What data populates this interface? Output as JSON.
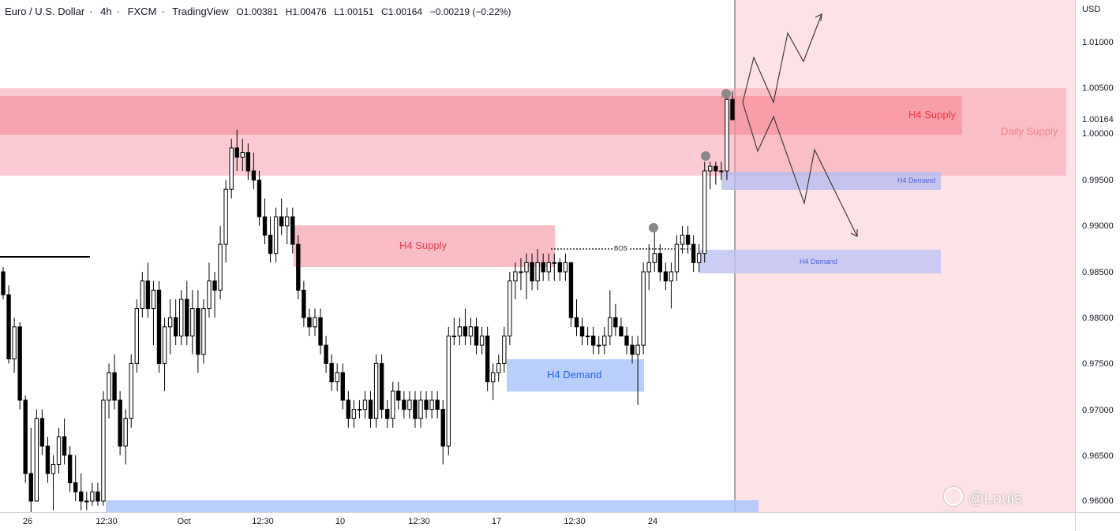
{
  "header": {
    "symbol": "Euro / U.S. Dollar",
    "interval": "4h",
    "exchange": "FXCM",
    "source": "TradingView",
    "open": "O1.00381",
    "high": "H1.00476",
    "low": "L1.00151",
    "close": "C1.00164",
    "change": "−0.00219 (−0.22%)"
  },
  "price_axis": {
    "currency": "USD",
    "labels": [
      "1.01000",
      "1.00500",
      "1.00000",
      "0.99500",
      "0.99000",
      "0.98500",
      "0.98000",
      "0.97500",
      "0.97000",
      "0.96500",
      "0.96000"
    ],
    "current_price": "1.00164"
  },
  "time_axis": {
    "labels": [
      "26",
      "12:30",
      "Oct",
      "12:30",
      "10",
      "12:30",
      "17",
      "12:30",
      "24"
    ]
  },
  "zones": {
    "h4_supply_top": "H4 Supply",
    "daily_supply": "Daily Supply",
    "h4_supply_mid": "H4 Supply",
    "h4_demand_low": "H4 Demand",
    "h4_demand_right_upper": "H4 Demand",
    "h4_demand_right_lower": "H4 Demand",
    "bos": "BOS"
  },
  "watermark": "@Louis Nguyen",
  "colors": {
    "supply": "#f23645",
    "demand": "#2962ff",
    "candle": "#000000",
    "forecast_bg": "#fde2e6"
  },
  "chart_data": {
    "type": "candlestick",
    "symbol": "EURUSD",
    "interval": "4h",
    "price_range": [
      0.959,
      1.0145
    ],
    "ohlc": [
      [
        0.985,
        0.9855,
        0.982,
        0.9825
      ],
      [
        0.9825,
        0.9835,
        0.975,
        0.9755
      ],
      [
        0.9755,
        0.98,
        0.974,
        0.979
      ],
      [
        0.979,
        0.9795,
        0.97,
        0.971
      ],
      [
        0.971,
        0.9715,
        0.962,
        0.963
      ],
      [
        0.963,
        0.968,
        0.958,
        0.96
      ],
      [
        0.96,
        0.97,
        0.96,
        0.969
      ],
      [
        0.969,
        0.97,
        0.965,
        0.966
      ],
      [
        0.966,
        0.967,
        0.962,
        0.963
      ],
      [
        0.963,
        0.965,
        0.959,
        0.964
      ],
      [
        0.964,
        0.968,
        0.963,
        0.967
      ],
      [
        0.967,
        0.969,
        0.964,
        0.965
      ],
      [
        0.965,
        0.966,
        0.961,
        0.962
      ],
      [
        0.962,
        0.965,
        0.96,
        0.961
      ],
      [
        0.961,
        0.963,
        0.959,
        0.96
      ],
      [
        0.96,
        0.961,
        0.959,
        0.96
      ],
      [
        0.96,
        0.962,
        0.9595,
        0.961
      ],
      [
        0.961,
        0.962,
        0.9595,
        0.96
      ],
      [
        0.96,
        0.972,
        0.9595,
        0.971
      ],
      [
        0.971,
        0.975,
        0.969,
        0.974
      ],
      [
        0.974,
        0.976,
        0.97,
        0.971
      ],
      [
        0.971,
        0.972,
        0.965,
        0.966
      ],
      [
        0.966,
        0.97,
        0.964,
        0.969
      ],
      [
        0.969,
        0.976,
        0.968,
        0.975
      ],
      [
        0.975,
        0.982,
        0.974,
        0.981
      ],
      [
        0.981,
        0.985,
        0.98,
        0.984
      ],
      [
        0.984,
        0.986,
        0.98,
        0.981
      ],
      [
        0.981,
        0.984,
        0.977,
        0.983
      ],
      [
        0.983,
        0.984,
        0.974,
        0.975
      ],
      [
        0.975,
        0.98,
        0.972,
        0.979
      ],
      [
        0.979,
        0.982,
        0.976,
        0.98
      ],
      [
        0.98,
        0.982,
        0.977,
        0.978
      ],
      [
        0.978,
        0.983,
        0.977,
        0.982
      ],
      [
        0.982,
        0.984,
        0.977,
        0.978
      ],
      [
        0.978,
        0.983,
        0.976,
        0.981
      ],
      [
        0.981,
        0.983,
        0.974,
        0.976
      ],
      [
        0.976,
        0.982,
        0.975,
        0.981
      ],
      [
        0.981,
        0.986,
        0.98,
        0.984
      ],
      [
        0.984,
        0.985,
        0.98,
        0.983
      ],
      [
        0.983,
        0.99,
        0.982,
        0.988
      ],
      [
        0.988,
        0.995,
        0.986,
        0.994
      ],
      [
        0.994,
        0.9995,
        0.993,
        0.9985
      ],
      [
        0.9985,
        1.0005,
        0.996,
        0.9975
      ],
      [
        0.9975,
        0.9995,
        0.996,
        0.998
      ],
      [
        0.998,
        0.999,
        0.995,
        0.996
      ],
      [
        0.996,
        0.998,
        0.994,
        0.995
      ],
      [
        0.995,
        0.996,
        0.99,
        0.991
      ],
      [
        0.991,
        0.993,
        0.988,
        0.989
      ],
      [
        0.989,
        0.991,
        0.986,
        0.987
      ],
      [
        0.987,
        0.992,
        0.986,
        0.991
      ],
      [
        0.991,
        0.993,
        0.989,
        0.99
      ],
      [
        0.99,
        0.992,
        0.988,
        0.991
      ],
      [
        0.991,
        0.992,
        0.987,
        0.988
      ],
      [
        0.988,
        0.989,
        0.982,
        0.983
      ],
      [
        0.983,
        0.984,
        0.979,
        0.98
      ],
      [
        0.98,
        0.981,
        0.978,
        0.979
      ],
      [
        0.979,
        0.981,
        0.978,
        0.98
      ],
      [
        0.98,
        0.981,
        0.976,
        0.977
      ],
      [
        0.977,
        0.978,
        0.974,
        0.975
      ],
      [
        0.975,
        0.976,
        0.972,
        0.973
      ],
      [
        0.973,
        0.975,
        0.972,
        0.974
      ],
      [
        0.974,
        0.975,
        0.97,
        0.971
      ],
      [
        0.971,
        0.972,
        0.968,
        0.969
      ],
      [
        0.969,
        0.971,
        0.968,
        0.97
      ],
      [
        0.97,
        0.971,
        0.969,
        0.97
      ],
      [
        0.97,
        0.972,
        0.969,
        0.971
      ],
      [
        0.971,
        0.972,
        0.968,
        0.969
      ],
      [
        0.969,
        0.976,
        0.968,
        0.975
      ],
      [
        0.975,
        0.976,
        0.969,
        0.97
      ],
      [
        0.97,
        0.971,
        0.968,
        0.969
      ],
      [
        0.969,
        0.973,
        0.968,
        0.972
      ],
      [
        0.972,
        0.973,
        0.97,
        0.971
      ],
      [
        0.971,
        0.972,
        0.969,
        0.97
      ],
      [
        0.97,
        0.972,
        0.969,
        0.971
      ],
      [
        0.971,
        0.972,
        0.968,
        0.969
      ],
      [
        0.969,
        0.972,
        0.968,
        0.971
      ],
      [
        0.971,
        0.972,
        0.969,
        0.97
      ],
      [
        0.97,
        0.972,
        0.969,
        0.971
      ],
      [
        0.971,
        0.972,
        0.969,
        0.97
      ],
      [
        0.97,
        0.971,
        0.964,
        0.966
      ],
      [
        0.966,
        0.979,
        0.965,
        0.978
      ],
      [
        0.978,
        0.98,
        0.977,
        0.978
      ],
      [
        0.978,
        0.98,
        0.977,
        0.979
      ],
      [
        0.979,
        0.981,
        0.977,
        0.978
      ],
      [
        0.978,
        0.98,
        0.977,
        0.979
      ],
      [
        0.979,
        0.98,
        0.976,
        0.977
      ],
      [
        0.977,
        0.979,
        0.976,
        0.978
      ],
      [
        0.978,
        0.979,
        0.972,
        0.973
      ],
      [
        0.973,
        0.975,
        0.971,
        0.974
      ],
      [
        0.974,
        0.976,
        0.973,
        0.975
      ],
      [
        0.975,
        0.979,
        0.974,
        0.978
      ],
      [
        0.978,
        0.985,
        0.977,
        0.984
      ],
      [
        0.984,
        0.986,
        0.982,
        0.985
      ],
      [
        0.985,
        0.9865,
        0.983,
        0.985
      ],
      [
        0.985,
        0.987,
        0.982,
        0.986
      ],
      [
        0.986,
        0.987,
        0.983,
        0.984
      ],
      [
        0.984,
        0.9875,
        0.983,
        0.986
      ],
      [
        0.986,
        0.987,
        0.984,
        0.985
      ],
      [
        0.985,
        0.987,
        0.984,
        0.986
      ],
      [
        0.986,
        0.987,
        0.984,
        0.986
      ],
      [
        0.986,
        0.9865,
        0.984,
        0.985
      ],
      [
        0.985,
        0.987,
        0.984,
        0.986
      ],
      [
        0.986,
        0.986,
        0.979,
        0.98
      ],
      [
        0.98,
        0.982,
        0.978,
        0.979
      ],
      [
        0.979,
        0.98,
        0.977,
        0.978
      ],
      [
        0.978,
        0.979,
        0.977,
        0.978
      ],
      [
        0.978,
        0.979,
        0.976,
        0.977
      ],
      [
        0.977,
        0.978,
        0.976,
        0.977
      ],
      [
        0.977,
        0.979,
        0.976,
        0.978
      ],
      [
        0.978,
        0.983,
        0.977,
        0.98
      ],
      [
        0.98,
        0.9815,
        0.978,
        0.979
      ],
      [
        0.979,
        0.98,
        0.978,
        0.978
      ],
      [
        0.978,
        0.979,
        0.976,
        0.977
      ],
      [
        0.977,
        0.978,
        0.975,
        0.976
      ],
      [
        0.976,
        0.978,
        0.9705,
        0.977
      ],
      [
        0.977,
        0.986,
        0.976,
        0.985
      ],
      [
        0.985,
        0.988,
        0.983,
        0.986
      ],
      [
        0.986,
        0.9895,
        0.985,
        0.987
      ],
      [
        0.987,
        0.988,
        0.984,
        0.985
      ],
      [
        0.985,
        0.986,
        0.983,
        0.984
      ],
      [
        0.984,
        0.986,
        0.981,
        0.985
      ],
      [
        0.985,
        0.989,
        0.984,
        0.988
      ],
      [
        0.988,
        0.99,
        0.987,
        0.989
      ],
      [
        0.989,
        0.99,
        0.987,
        0.988
      ],
      [
        0.988,
        0.989,
        0.985,
        0.986
      ],
      [
        0.986,
        0.988,
        0.985,
        0.987
      ],
      [
        0.987,
        0.997,
        0.986,
        0.996
      ],
      [
        0.996,
        0.997,
        0.994,
        0.9965
      ],
      [
        0.9965,
        0.997,
        0.9945,
        0.996
      ],
      [
        0.996,
        0.997,
        0.995,
        0.996
      ],
      [
        0.996,
        1.0048,
        0.995,
        1.0038
      ],
      [
        1.0038,
        1.0047,
        1.0015,
        1.0016
      ]
    ]
  }
}
